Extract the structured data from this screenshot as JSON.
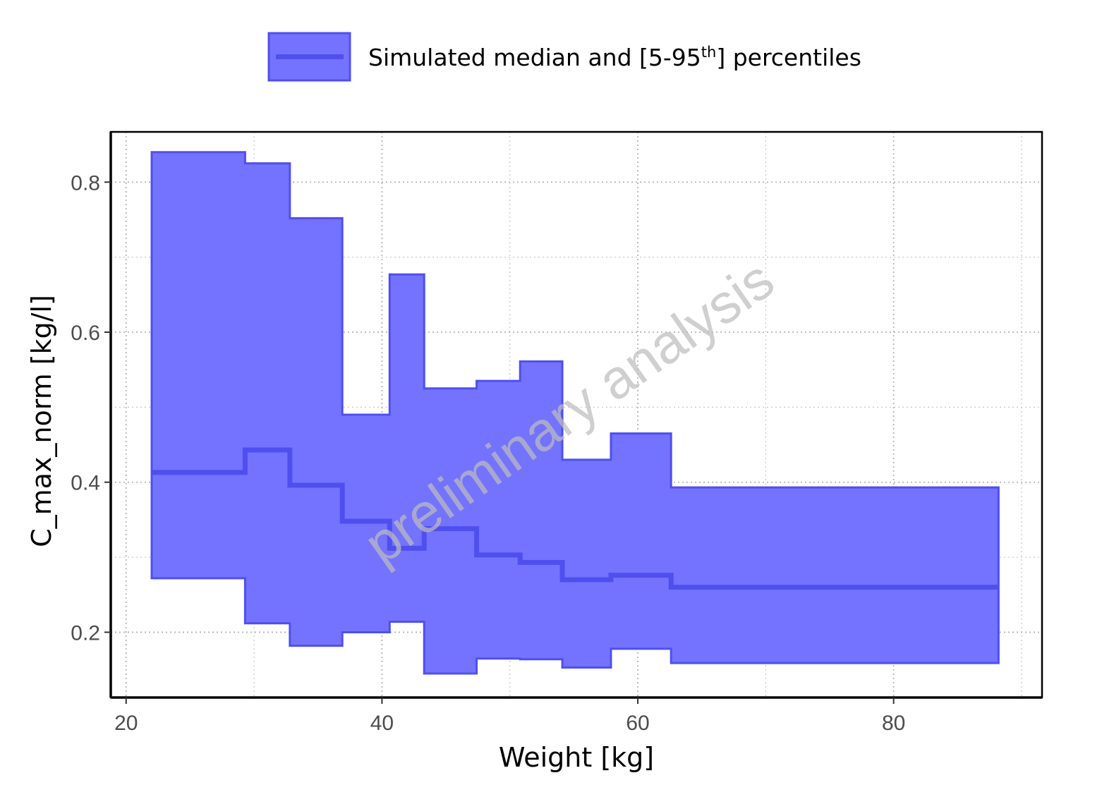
{
  "chart_data": {
    "type": "area",
    "xlabel": "Weight [kg]",
    "ylabel": "C_max_norm [kg/l]",
    "xlim": [
      18.8,
      91.6
    ],
    "ylim": [
      0.113,
      0.867
    ],
    "x_ticks": [
      "20",
      "40",
      "60",
      "80"
    ],
    "x_tick_values": [
      20,
      40,
      60,
      80
    ],
    "y_ticks": [
      "0.2",
      "0.4",
      "0.6",
      "0.8"
    ],
    "y_tick_values": [
      0.2,
      0.4,
      0.6,
      0.8
    ],
    "grid": true,
    "legend_position": "top",
    "legend": {
      "label_main": "Simulated median and [5-95",
      "label_sup": "th",
      "label_end": "] percentiles"
    },
    "watermark": "preliminary analysis",
    "colors": {
      "fill": "#7373ff",
      "line": "#4f4ff0",
      "grid": "#c8c8c8"
    },
    "bins": {
      "edges": [
        22,
        29.3,
        32.8,
        36.9,
        40.6,
        43.3,
        47.4,
        50.8,
        54.1,
        57.9,
        62.6,
        88.2
      ],
      "median": [
        0.413,
        0.443,
        0.396,
        0.348,
        0.312,
        0.338,
        0.303,
        0.293,
        0.27,
        0.276,
        0.26
      ],
      "p5": [
        0.272,
        0.212,
        0.182,
        0.2,
        0.214,
        0.145,
        0.165,
        0.164,
        0.153,
        0.178,
        0.159
      ],
      "p95": [
        0.84,
        0.825,
        0.752,
        0.49,
        0.677,
        0.525,
        0.535,
        0.561,
        0.43,
        0.465,
        0.393
      ]
    }
  }
}
